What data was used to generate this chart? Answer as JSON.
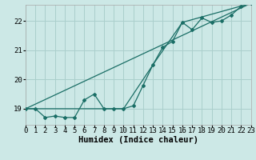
{
  "xlabel": "Humidex (Indice chaleur)",
  "bg_color": "#cce8e6",
  "grid_color": "#aacfcc",
  "line_color": "#1a6e66",
  "xlim": [
    0,
    23
  ],
  "ylim": [
    18.45,
    22.55
  ],
  "yticks": [
    19,
    20,
    21,
    22
  ],
  "xticks": [
    0,
    1,
    2,
    3,
    4,
    5,
    6,
    7,
    8,
    9,
    10,
    11,
    12,
    13,
    14,
    15,
    16,
    17,
    18,
    19,
    20,
    21,
    22,
    23
  ],
  "series1_x": [
    0,
    1,
    2,
    3,
    4,
    5,
    6,
    7,
    8,
    9,
    10,
    11,
    12,
    13,
    14,
    15,
    16,
    17,
    18,
    19,
    20,
    21,
    22,
    23
  ],
  "series1_y": [
    19.0,
    19.0,
    18.7,
    18.75,
    18.7,
    18.7,
    19.3,
    19.5,
    19.0,
    19.0,
    19.0,
    19.1,
    19.8,
    20.5,
    21.1,
    21.3,
    21.95,
    21.7,
    22.1,
    21.95,
    22.0,
    22.2,
    22.5,
    22.6
  ],
  "series2_x": [
    0,
    23
  ],
  "series2_y": [
    19.0,
    22.6
  ],
  "series3_x": [
    0,
    10,
    13,
    16,
    23
  ],
  "series3_y": [
    19.0,
    19.0,
    20.5,
    21.95,
    22.6
  ],
  "xlabel_fontsize": 7.5,
  "tick_fontsize": 6.5
}
